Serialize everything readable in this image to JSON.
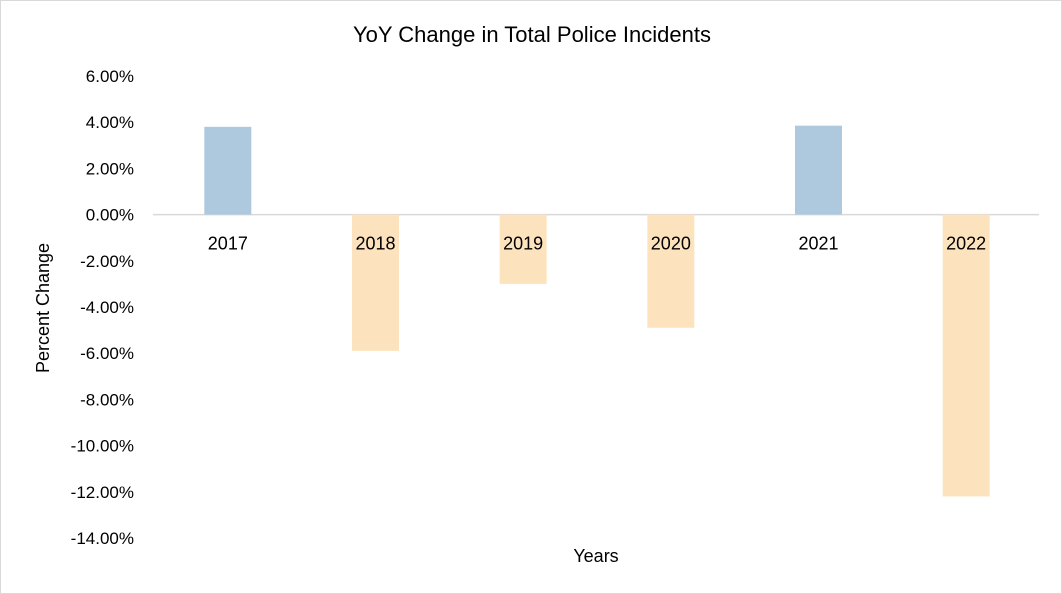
{
  "chart_data": {
    "type": "bar",
    "title": "YoY Change in Total Police Incidents",
    "xlabel": "Years",
    "ylabel": "Percent Change",
    "categories": [
      "2017",
      "2018",
      "2019",
      "2020",
      "2021",
      "2022"
    ],
    "series": [
      {
        "values": [
          3.8,
          -5.9,
          -3.0,
          -4.9,
          3.85,
          -12.2
        ]
      }
    ],
    "ylim": [
      -14,
      6
    ],
    "yticks": [
      6,
      4,
      2,
      0,
      -2,
      -4,
      -6,
      -8,
      -10,
      -12,
      -14
    ],
    "ytick_labels": [
      "6.00%",
      "4.00%",
      "2.00%",
      "0.00%",
      "-2.00%",
      "-4.00%",
      "-6.00%",
      "-8.00%",
      "-10.00%",
      "-12.00%",
      "-14.00%"
    ],
    "grid": false,
    "legend": "none",
    "colors": {
      "positive": "#aec9de",
      "negative": "#fde3bd",
      "zero_line": "#d9d9d9"
    }
  }
}
